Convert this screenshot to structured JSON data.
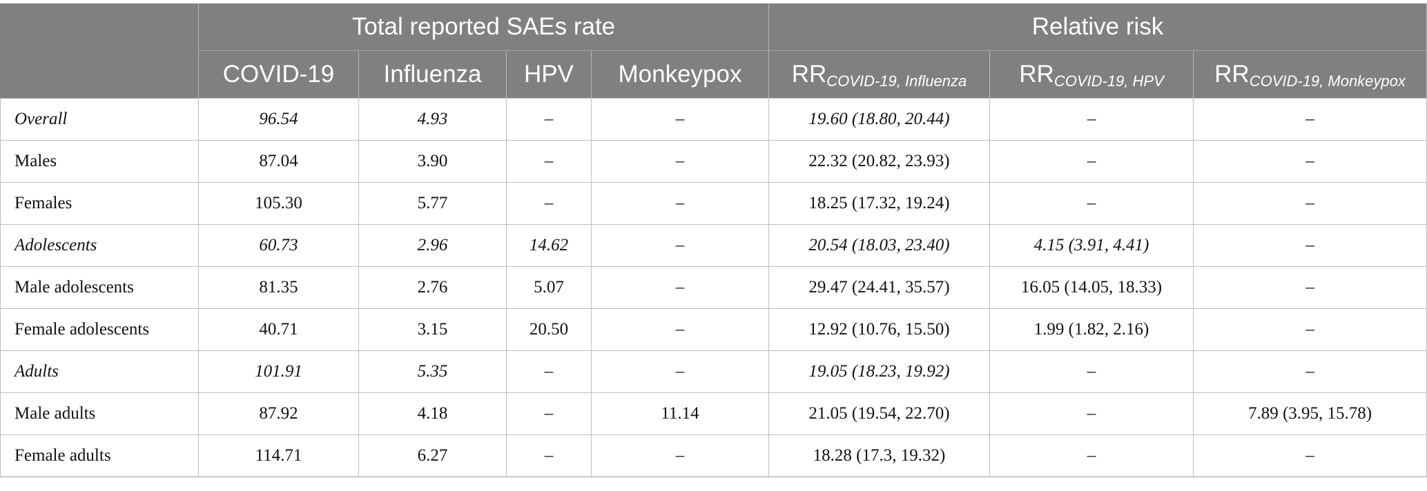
{
  "header": {
    "group1": "Total reported SAEs rate",
    "group2": "Relative risk",
    "columns": [
      "COVID-19",
      "Influenza",
      "HPV",
      "Monkeypox"
    ],
    "rr_prefix": "RR",
    "rr_subscripts": [
      "COVID-19, Influenza",
      "COVID-19, HPV",
      "COVID-19, Monkeypox"
    ]
  },
  "rows": [
    {
      "label": "Overall",
      "italic": true,
      "cells": [
        "96.54",
        "4.93",
        "–",
        "–",
        "19.60 (18.80, 20.44)",
        "–",
        "–"
      ]
    },
    {
      "label": "Males",
      "italic": false,
      "cells": [
        "87.04",
        "3.90",
        "–",
        "–",
        "22.32 (20.82, 23.93)",
        "–",
        "–"
      ]
    },
    {
      "label": "Females",
      "italic": false,
      "cells": [
        "105.30",
        "5.77",
        "–",
        "–",
        "18.25 (17.32, 19.24)",
        "–",
        "–"
      ]
    },
    {
      "label": "Adolescents",
      "italic": true,
      "cells": [
        "60.73",
        "2.96",
        "14.62",
        "–",
        "20.54 (18.03, 23.40)",
        "4.15 (3.91, 4.41)",
        "–"
      ]
    },
    {
      "label": "Male adolescents",
      "italic": false,
      "cells": [
        "81.35",
        "2.76",
        "5.07",
        "–",
        "29.47 (24.41, 35.57)",
        "16.05 (14.05, 18.33)",
        "–"
      ]
    },
    {
      "label": "Female adolescents",
      "italic": false,
      "cells": [
        "40.71",
        "3.15",
        "20.50",
        "–",
        "12.92 (10.76, 15.50)",
        "1.99 (1.82, 2.16)",
        "–"
      ]
    },
    {
      "label": "Adults",
      "italic": true,
      "cells": [
        "101.91",
        "5.35",
        "–",
        "–",
        "19.05 (18.23, 19.92)",
        "–",
        "–"
      ]
    },
    {
      "label": "Male adults",
      "italic": false,
      "cells": [
        "87.92",
        "4.18",
        "–",
        "11.14",
        "21.05 (19.54, 22.70)",
        "–",
        "7.89 (3.95, 15.78)"
      ]
    },
    {
      "label": "Female adults",
      "italic": false,
      "cells": [
        "114.71",
        "6.27",
        "–",
        "–",
        "18.28 (17.3, 19.32)",
        "–",
        "–"
      ]
    }
  ]
}
